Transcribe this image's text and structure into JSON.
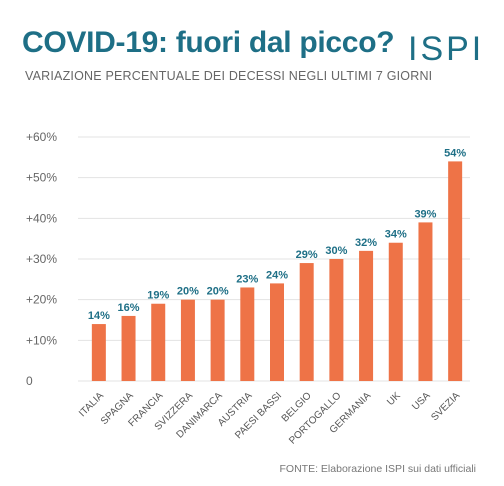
{
  "header": {
    "title": "COVID-19: fuori dal picco?",
    "subtitle": "VARIAZIONE PERCENTUALE DEI DECESSI NEGLI ULTIMI 7 GIORNI",
    "logo": "ISPI"
  },
  "footer": {
    "source": "FONTE: Elaborazione ISPI sui dati ufficiali"
  },
  "colors": {
    "bar": "#ee7347",
    "title": "#1e6f86",
    "grid": "#e3e3e3"
  },
  "chart_data": {
    "type": "bar",
    "title": "COVID-19: fuori dal picco?",
    "subtitle": "VARIAZIONE PERCENTUALE DEI DECESSI NEGLI ULTIMI 7 GIORNI",
    "categories": [
      "ITALIA",
      "SPAGNA",
      "FRANCIA",
      "SVIZZERA",
      "DANIMARCA",
      "AUSTRIA",
      "PAESI BASSI",
      "BELGIO",
      "PORTOGALLO",
      "GERMANIA",
      "UK",
      "USA",
      "SVEZIA"
    ],
    "values": [
      14,
      16,
      19,
      20,
      20,
      23,
      24,
      29,
      30,
      32,
      34,
      39,
      54
    ],
    "value_labels": [
      "14%",
      "16%",
      "19%",
      "20%",
      "20%",
      "23%",
      "24%",
      "29%",
      "30%",
      "32%",
      "34%",
      "39%",
      "54%"
    ],
    "value_unit": "%",
    "ylim": [
      0,
      60
    ],
    "yticks": [
      0,
      10,
      20,
      30,
      40,
      50,
      60
    ],
    "ytick_labels": [
      "0",
      "+10%",
      "+20%",
      "+30%",
      "+40%",
      "+50%",
      "+60%"
    ],
    "xlabel": "",
    "ylabel": "",
    "grid": true,
    "legend": "none"
  }
}
